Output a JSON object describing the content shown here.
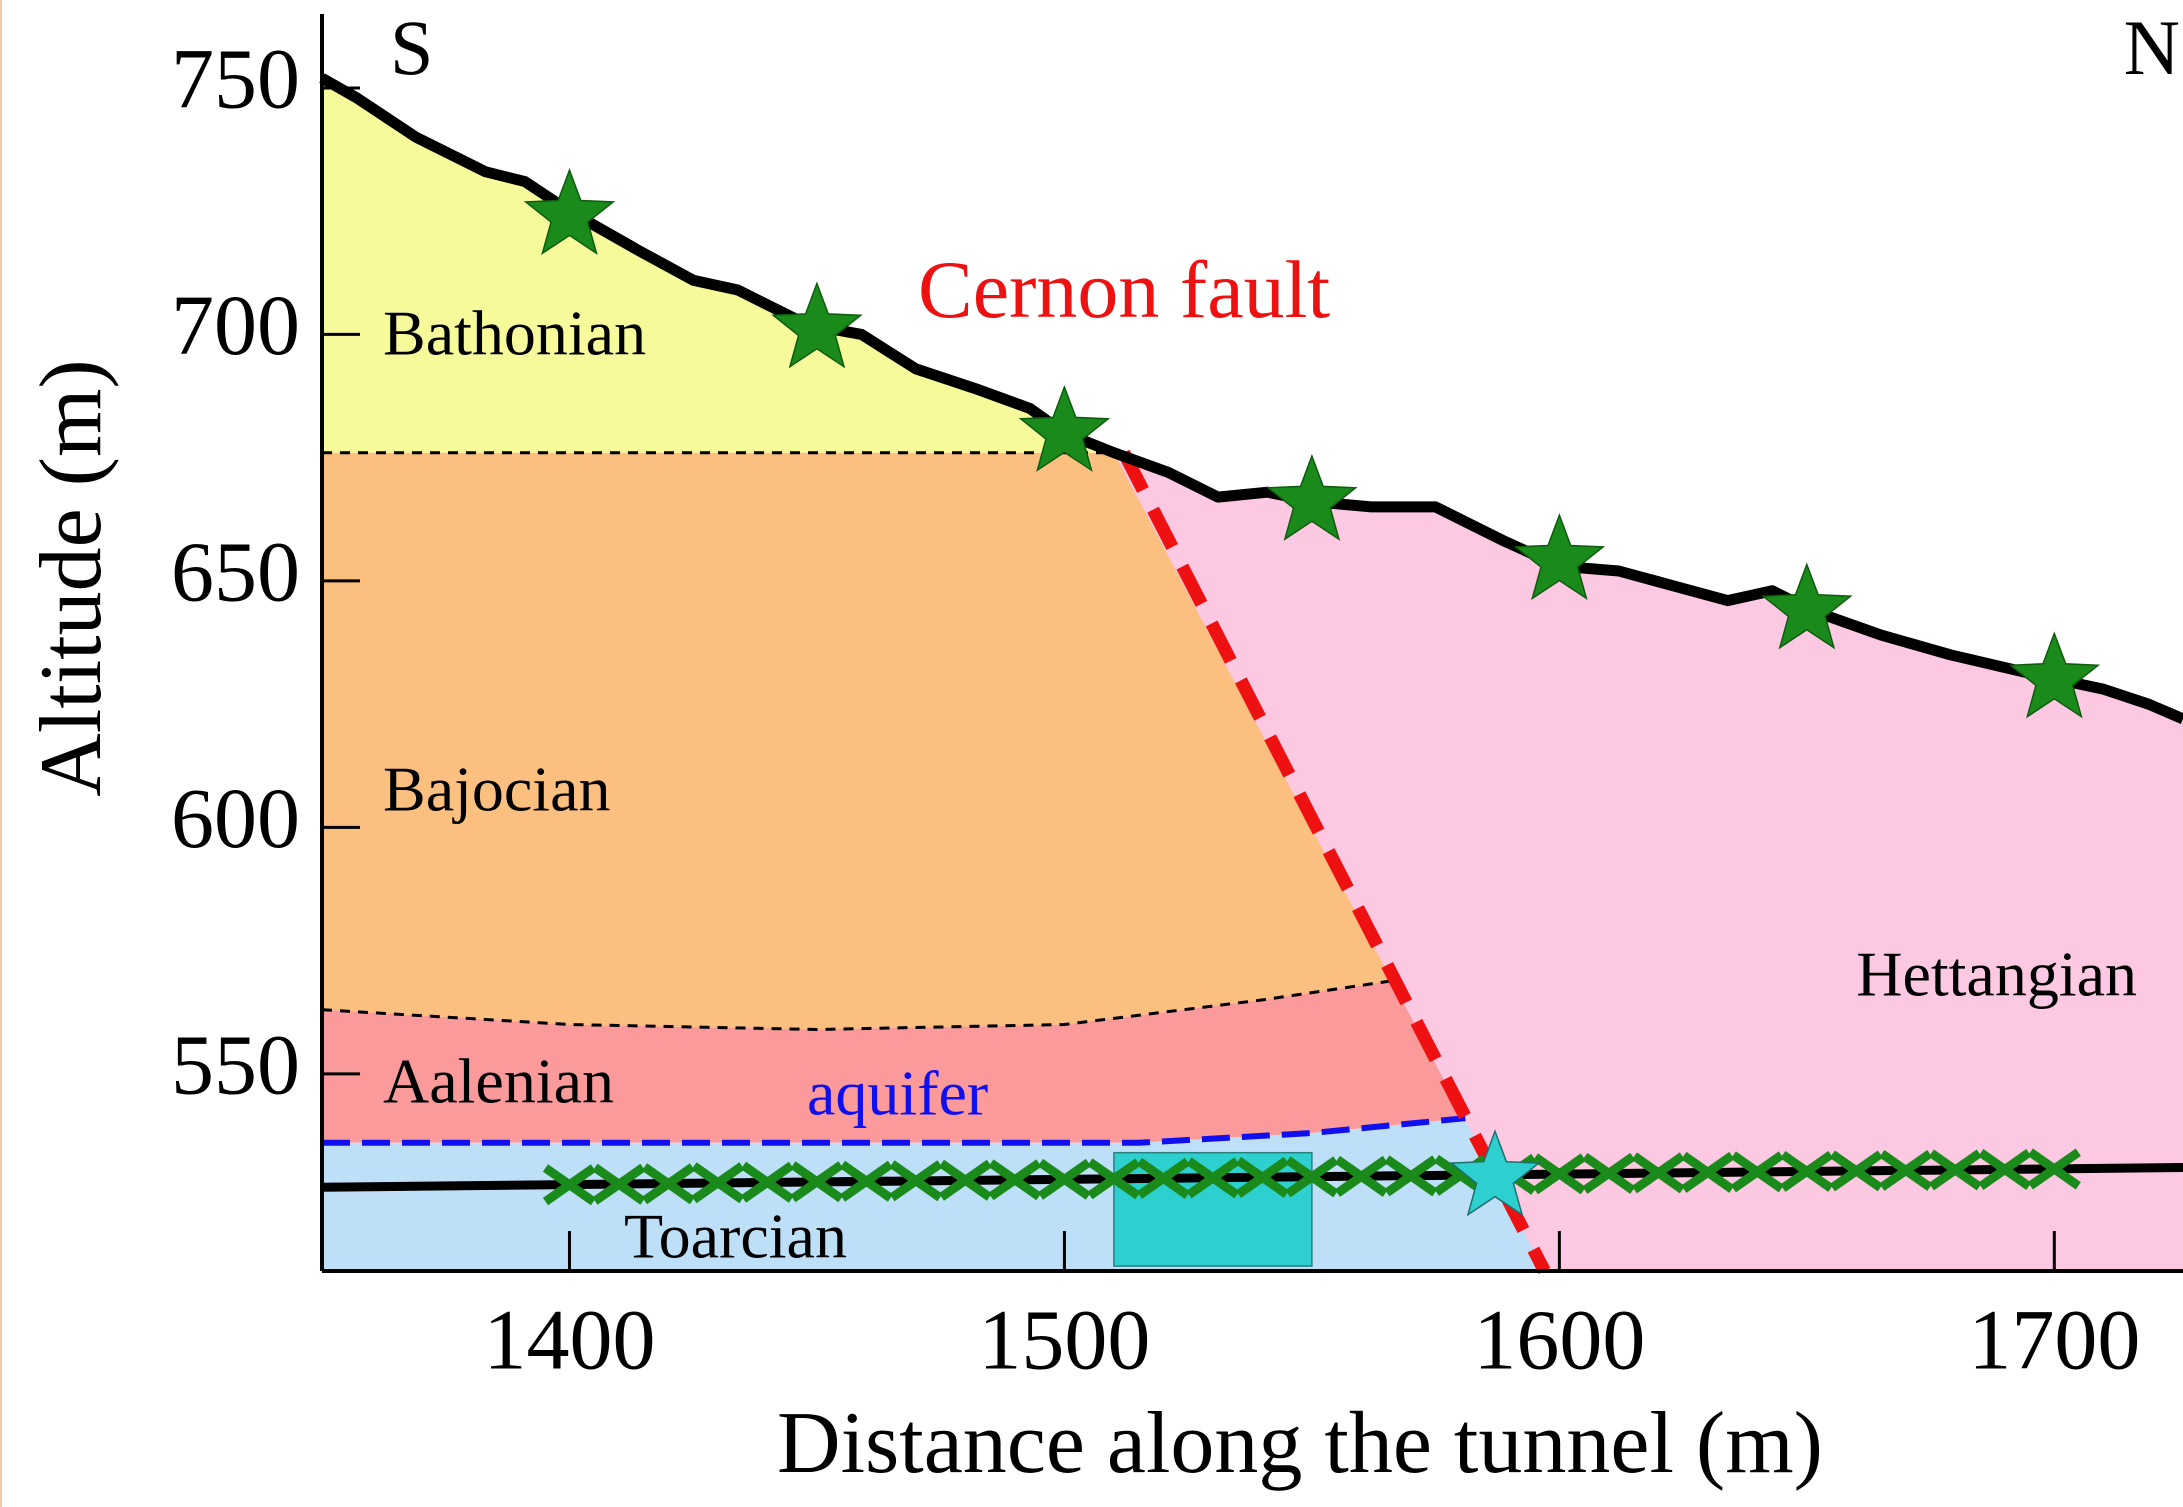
{
  "chart_data": {
    "type": "section",
    "xlabel": "Distance along the tunnel (m)",
    "ylabel": "Altitude (m)",
    "xlim": [
      1350,
      1726
    ],
    "ylim": [
      510,
      765
    ],
    "xticks": [
      1400,
      1500,
      1600,
      1700
    ],
    "yticks": [
      550,
      600,
      650,
      700,
      750
    ],
    "left_end": "S",
    "right_end": "N",
    "units": [
      {
        "name": "Bathonian",
        "color": "#f7fa9a",
        "x": [
          1350,
          1357,
          1369,
          1383,
          1391,
          1400,
          1414,
          1425,
          1434,
          1448,
          1459,
          1470,
          1482,
          1493,
          1500,
          1510,
          1350
        ],
        "y": [
          752,
          748,
          740,
          733,
          731,
          725,
          717,
          711,
          709,
          702,
          700,
          693,
          689,
          685,
          680,
          676,
          676
        ]
      },
      {
        "name": "Bajocian",
        "color": "#fbbf80",
        "x": [
          1350,
          1510,
          1567,
          1540,
          1500,
          1450,
          1400,
          1350
        ],
        "y": [
          676,
          676,
          569,
          565,
          560,
          559,
          560,
          563
        ]
      },
      {
        "name": "Aalenian",
        "color": "#fa9a9a",
        "x": [
          1350,
          1400,
          1450,
          1500,
          1540,
          1567,
          1581,
          1550,
          1515,
          1350
        ],
        "y": [
          563,
          560,
          559,
          560,
          565,
          569,
          541,
          538,
          536,
          536
        ]
      },
      {
        "name": "Toarcian",
        "color": "#bddff8",
        "x": [
          1350,
          1515,
          1550,
          1581,
          1597,
          1350
        ],
        "y": [
          536,
          536,
          538,
          541,
          510,
          510
        ]
      },
      {
        "name": "Hettangian",
        "color": "#fcc8e2",
        "x": [
          1510,
          1521,
          1531,
          1541,
          1551,
          1562,
          1575,
          1583,
          1589,
          1600,
          1612,
          1623,
          1634,
          1643,
          1651,
          1665,
          1679,
          1696,
          1710,
          1719,
          1726,
          1726,
          1597
        ],
        "y": [
          676,
          672,
          667,
          668,
          666,
          665,
          665,
          661,
          658,
          653,
          652,
          649,
          646,
          648,
          644,
          639,
          635,
          631,
          628,
          625,
          622,
          510,
          510
        ]
      }
    ],
    "boundaries": [
      {
        "x": [
          1350,
          1510
        ],
        "y": [
          676,
          676
        ],
        "color": "#000000"
      },
      {
        "x": [
          1350,
          1400,
          1450,
          1500,
          1540,
          1567
        ],
        "y": [
          563,
          560,
          559,
          560,
          565,
          569
        ],
        "color": "#000000"
      },
      {
        "name": "aquifer",
        "x": [
          1350,
          1515,
          1550,
          1581
        ],
        "y": [
          536,
          536,
          538,
          541
        ],
        "color": "#1010ee"
      }
    ],
    "fault": {
      "name": "Cernon fault",
      "x": [
        1512,
        1597
      ],
      "y": [
        676,
        510
      ],
      "color": "#ee1111"
    },
    "topography": {
      "color": "#000000",
      "x": [
        1350,
        1357,
        1369,
        1383,
        1391,
        1400,
        1414,
        1425,
        1434,
        1448,
        1459,
        1470,
        1482,
        1493,
        1500,
        1510,
        1521,
        1531,
        1541,
        1551,
        1562,
        1575,
        1583,
        1589,
        1600,
        1612,
        1623,
        1634,
        1643,
        1651,
        1665,
        1679,
        1696,
        1710,
        1719,
        1726
      ],
      "y": [
        752,
        748,
        740,
        733,
        731,
        725,
        717,
        711,
        709,
        702,
        700,
        693,
        689,
        685,
        680,
        676,
        672,
        667,
        668,
        666,
        665,
        665,
        661,
        658,
        653,
        652,
        649,
        646,
        648,
        644,
        639,
        635,
        631,
        628,
        625,
        622
      ]
    },
    "stars": {
      "color": "#1a8a1a",
      "x": [
        1400,
        1450,
        1500,
        1550,
        1600,
        1650,
        1700
      ],
      "y": [
        724,
        701,
        680,
        666,
        654,
        644,
        630
      ]
    },
    "tunnel": {
      "color": "#000000",
      "x": [
        1350,
        1726
      ],
      "y": [
        527,
        531
      ]
    },
    "tunnel_markers": {
      "color": "#1a8a1a",
      "x": [
        1400,
        1410,
        1420,
        1430,
        1440,
        1450,
        1460,
        1470,
        1480,
        1490,
        1500,
        1510,
        1520,
        1530,
        1540,
        1550,
        1560,
        1570,
        1580,
        1590,
        1600,
        1610,
        1620,
        1630,
        1640,
        1650,
        1660,
        1670,
        1680,
        1690,
        1700
      ],
      "y": [
        527.5,
        527.6,
        527.7,
        527.9,
        528.0,
        528.1,
        528.2,
        528.3,
        528.4,
        528.5,
        528.6,
        528.7,
        528.8,
        528.9,
        529.0,
        529.1,
        529.2,
        529.3,
        529.4,
        529.6,
        529.7,
        529.8,
        529.9,
        530.0,
        530.1,
        530.2,
        530.3,
        530.4,
        530.5,
        530.6,
        530.7
      ]
    },
    "box": {
      "color": "#2ecfcf",
      "x": [
        1510,
        1550
      ],
      "y": [
        511,
        534
      ]
    },
    "fault_star": {
      "color": "#2ecfcf",
      "x": 1587,
      "y": 529
    }
  }
}
